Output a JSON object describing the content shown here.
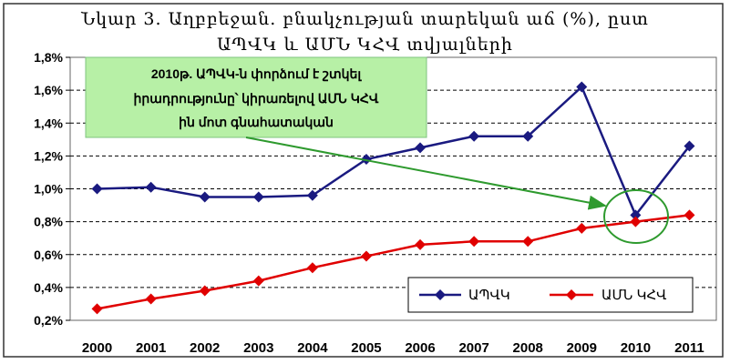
{
  "chart_data": {
    "type": "line",
    "title": "Նկար 3. Աղբբեջան. բնակչության տարեկան աճ (%), ըստ",
    "subtitle": "ԱՊՎԿ և ԱՄՆ ԿՀՎ տվյալների",
    "xlabel": "",
    "ylabel": "",
    "x": [
      "2000",
      "2001",
      "2002",
      "2003",
      "2004",
      "2005",
      "2006",
      "2007",
      "2008",
      "2009",
      "2010",
      "2011"
    ],
    "ylim": [
      0.2,
      1.8
    ],
    "yticks": [
      0.2,
      0.4,
      0.6,
      0.8,
      1.0,
      1.2,
      1.4,
      1.6,
      1.8
    ],
    "ytick_labels": [
      "0,2%",
      "0,4%",
      "0,6%",
      "0,8%",
      "1,0%",
      "1,2%",
      "1,4%",
      "1,6%",
      "1,8%"
    ],
    "grid": true,
    "legend_position": "bottom-right",
    "series": [
      {
        "name": "ԱՊՎԿ",
        "color": "#1a1a80",
        "marker": "diamond",
        "values": [
          1.0,
          1.01,
          0.95,
          0.95,
          0.96,
          1.18,
          1.25,
          1.32,
          1.32,
          1.62,
          0.84,
          1.26
        ]
      },
      {
        "name": "ԱՄՆ ԿՀՎ",
        "color": "#e00000",
        "marker": "diamond",
        "values": [
          0.27,
          0.33,
          0.38,
          0.44,
          0.52,
          0.59,
          0.66,
          0.68,
          0.68,
          0.76,
          0.8,
          0.84
        ]
      }
    ],
    "annotation": {
      "lines": [
        "2010թ. ԱՊՎԿ-ն փորձում է շտկել",
        "իրադրությունը՝ կիրառելով ԱՄՆ ԿՀՎ",
        "ին մոտ գնահատական"
      ],
      "box_color": "#b7f0a6",
      "arrow_color": "#2e9a2e",
      "circle_color": "#2e9a2e"
    }
  }
}
